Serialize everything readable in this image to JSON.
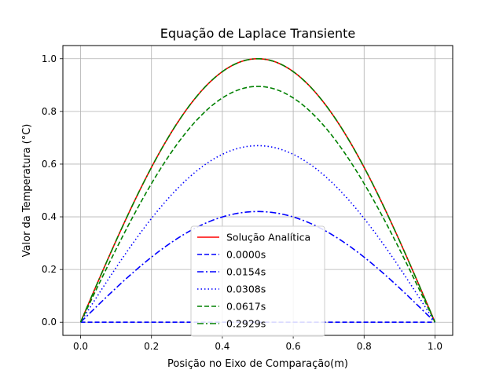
{
  "chart_data": {
    "type": "line",
    "title": "Equação de Laplace Transiente",
    "xlabel": "Posição no Eixo de Comparação(m)",
    "ylabel": "Valor da Temperatura (°C)",
    "xlim": [
      -0.05,
      1.05
    ],
    "ylim": [
      -0.05,
      1.05
    ],
    "xticks": [
      0.0,
      0.2,
      0.4,
      0.6,
      0.8,
      1.0
    ],
    "yticks": [
      0.0,
      0.2,
      0.4,
      0.6,
      0.8,
      1.0
    ],
    "xtick_labels": [
      "0.0",
      "0.2",
      "0.4",
      "0.6",
      "0.8",
      "1.0"
    ],
    "ytick_labels": [
      "0.0",
      "0.2",
      "0.4",
      "0.6",
      "0.8",
      "1.0"
    ],
    "grid": true,
    "legend_position": "lower-center",
    "x": [
      0.0,
      0.05,
      0.1,
      0.15,
      0.2,
      0.25,
      0.3,
      0.35,
      0.4,
      0.45,
      0.5,
      0.55,
      0.6,
      0.65,
      0.7,
      0.75,
      0.8,
      0.85,
      0.9,
      0.95,
      1.0
    ],
    "series": [
      {
        "name": "Solução Analítica",
        "color": "#ff0000",
        "dash": "solid",
        "values": [
          0.0,
          0.156,
          0.309,
          0.454,
          0.588,
          0.707,
          0.809,
          0.891,
          0.951,
          0.988,
          1.0,
          0.988,
          0.951,
          0.891,
          0.809,
          0.707,
          0.588,
          0.454,
          0.309,
          0.156,
          0.0
        ]
      },
      {
        "name": "0.0000s",
        "color": "#0000ff",
        "dash": "dashed",
        "values": [
          0.0,
          0.0,
          0.0,
          0.0,
          0.0,
          0.0,
          0.0,
          0.0,
          0.0,
          0.0,
          0.0,
          0.0,
          0.0,
          0.0,
          0.0,
          0.0,
          0.0,
          0.0,
          0.0,
          0.0,
          0.0
        ]
      },
      {
        "name": "0.0154s",
        "color": "#0000ff",
        "dash": "dashdot",
        "values": [
          0.0,
          0.066,
          0.13,
          0.19,
          0.246,
          0.297,
          0.34,
          0.374,
          0.399,
          0.415,
          0.42,
          0.415,
          0.399,
          0.374,
          0.34,
          0.297,
          0.246,
          0.19,
          0.13,
          0.066,
          0.0
        ]
      },
      {
        "name": "0.0308s",
        "color": "#0000ff",
        "dash": "dotted",
        "values": [
          0.0,
          0.105,
          0.207,
          0.304,
          0.394,
          0.474,
          0.542,
          0.597,
          0.637,
          0.662,
          0.67,
          0.662,
          0.637,
          0.597,
          0.542,
          0.474,
          0.394,
          0.304,
          0.207,
          0.105,
          0.0
        ]
      },
      {
        "name": "0.0617s",
        "color": "#008000",
        "dash": "dashed",
        "values": [
          0.0,
          0.14,
          0.277,
          0.406,
          0.526,
          0.633,
          0.724,
          0.797,
          0.851,
          0.884,
          0.895,
          0.884,
          0.851,
          0.797,
          0.724,
          0.633,
          0.526,
          0.406,
          0.277,
          0.14,
          0.0
        ]
      },
      {
        "name": "0.2929s",
        "color": "#008000",
        "dash": "dashdot",
        "values": [
          0.0,
          0.156,
          0.309,
          0.454,
          0.588,
          0.707,
          0.809,
          0.891,
          0.951,
          0.988,
          1.0,
          0.988,
          0.951,
          0.891,
          0.809,
          0.707,
          0.588,
          0.454,
          0.309,
          0.156,
          0.0
        ]
      }
    ]
  }
}
